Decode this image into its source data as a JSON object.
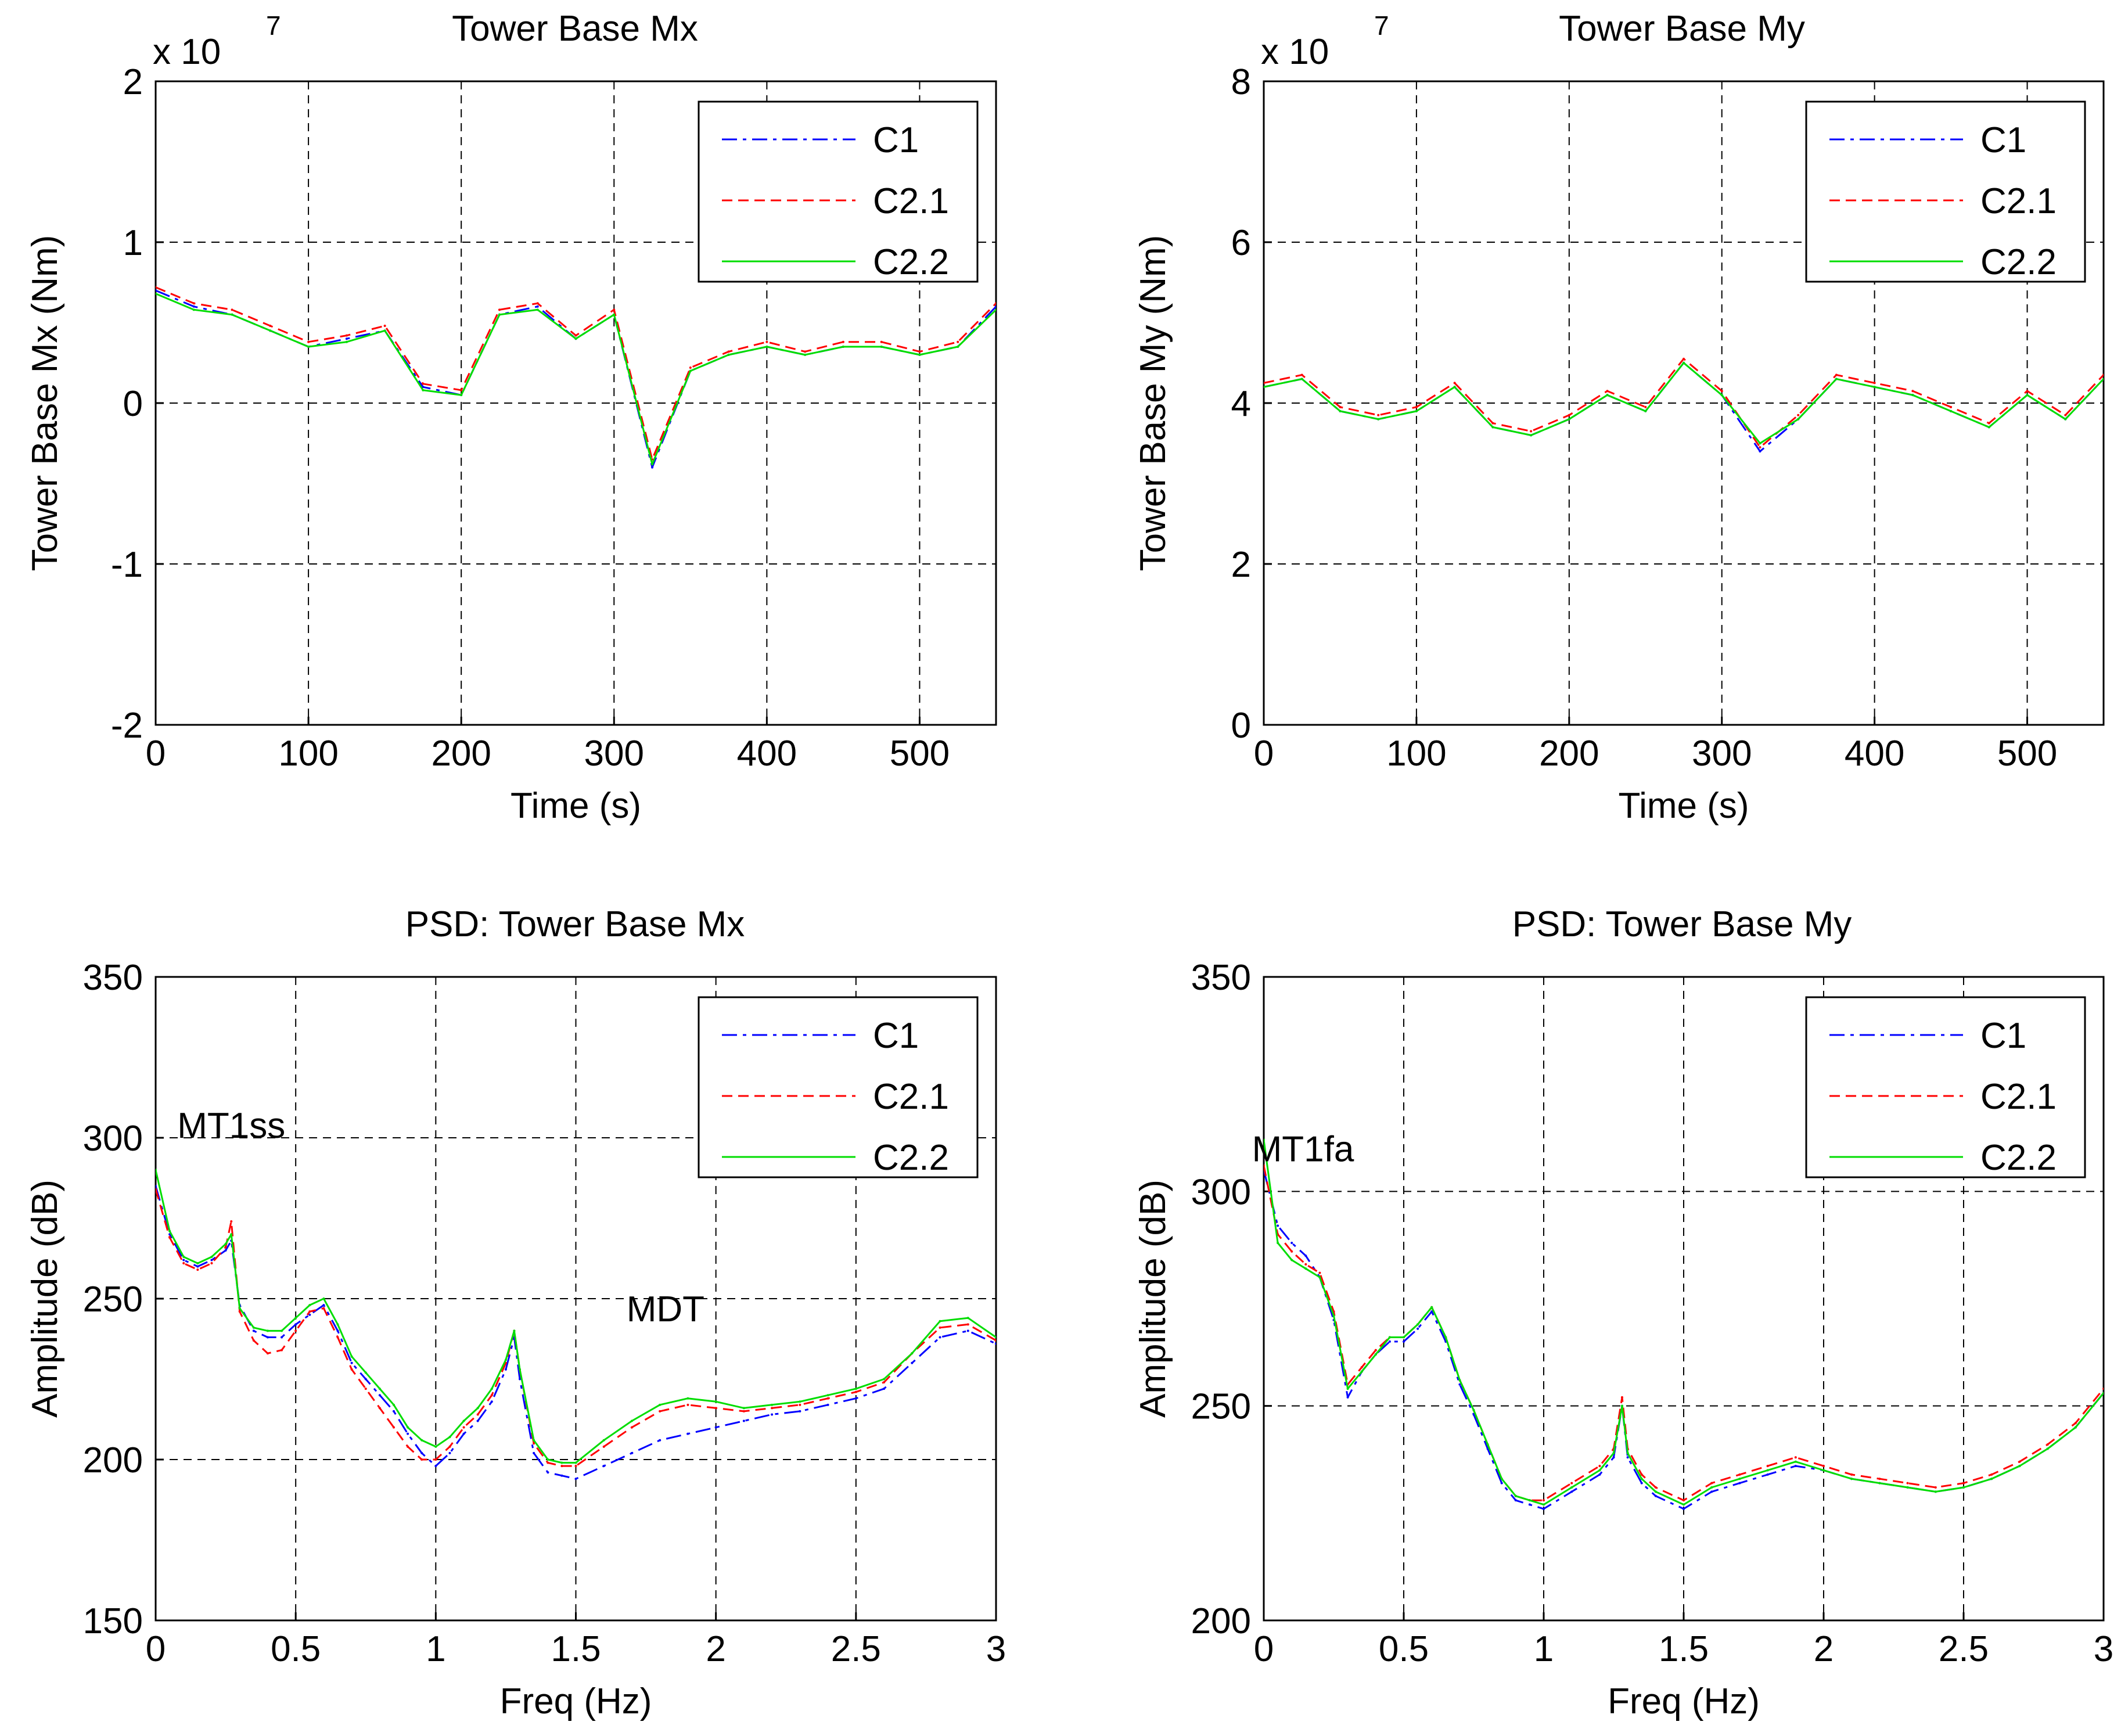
{
  "figure": {
    "panels": [
      {
        "title": "Tower Base Mx"
      },
      {
        "title": "Tower Base My"
      },
      {
        "title": "PSD: Tower Base Mx"
      },
      {
        "title": "PSD: Tower Base My"
      }
    ]
  },
  "chart_data": [
    {
      "type": "line",
      "title": "Tower Base Mx",
      "xlabel": "Time (s)",
      "ylabel": "Tower Base Mx (Nm)",
      "exponent_label": "x 10",
      "exponent_power": "7",
      "xlim": [
        0,
        550
      ],
      "ylim": [
        -2,
        2
      ],
      "xticks": [
        0,
        100,
        200,
        300,
        400,
        500
      ],
      "yticks": [
        -2,
        -1,
        0,
        1,
        2
      ],
      "grid": true,
      "legend_position": "top-right",
      "series": [
        {
          "name": "C1",
          "color": "#0000ff",
          "style": "dashdot",
          "x": [
            0,
            25,
            50,
            75,
            100,
            125,
            150,
            175,
            200,
            225,
            250,
            275,
            300,
            325,
            350,
            375,
            400,
            425,
            450,
            475,
            500,
            525,
            550
          ],
          "y": [
            0.7,
            0.6,
            0.55,
            0.45,
            0.35,
            0.4,
            0.45,
            0.1,
            0.05,
            0.55,
            0.6,
            0.4,
            0.55,
            -0.4,
            0.2,
            0.3,
            0.35,
            0.3,
            0.35,
            0.35,
            0.3,
            0.35,
            0.6
          ]
        },
        {
          "name": "C2.1",
          "color": "#ff0000",
          "style": "dashed",
          "x": [
            0,
            25,
            50,
            75,
            100,
            125,
            150,
            175,
            200,
            225,
            250,
            275,
            300,
            325,
            350,
            375,
            400,
            425,
            450,
            475,
            500,
            525,
            550
          ],
          "y": [
            0.72,
            0.62,
            0.58,
            0.48,
            0.38,
            0.42,
            0.48,
            0.12,
            0.08,
            0.58,
            0.62,
            0.42,
            0.58,
            -0.35,
            0.22,
            0.32,
            0.38,
            0.32,
            0.38,
            0.38,
            0.32,
            0.38,
            0.62
          ]
        },
        {
          "name": "C2.2",
          "color": "#00dd00",
          "style": "solid",
          "x": [
            0,
            25,
            50,
            75,
            100,
            125,
            150,
            175,
            200,
            225,
            250,
            275,
            300,
            325,
            350,
            375,
            400,
            425,
            450,
            475,
            500,
            525,
            550
          ],
          "y": [
            0.68,
            0.58,
            0.55,
            0.45,
            0.35,
            0.38,
            0.45,
            0.08,
            0.05,
            0.55,
            0.58,
            0.4,
            0.55,
            -0.38,
            0.2,
            0.3,
            0.35,
            0.3,
            0.35,
            0.35,
            0.3,
            0.35,
            0.58
          ]
        }
      ]
    },
    {
      "type": "line",
      "title": "Tower Base My",
      "xlabel": "Time (s)",
      "ylabel": "Tower Base My (Nm)",
      "exponent_label": "x 10",
      "exponent_power": "7",
      "xlim": [
        0,
        550
      ],
      "ylim": [
        0,
        8
      ],
      "xticks": [
        0,
        100,
        200,
        300,
        400,
        500
      ],
      "yticks": [
        0,
        2,
        4,
        6,
        8
      ],
      "grid": true,
      "legend_position": "top-right",
      "series": [
        {
          "name": "C1",
          "color": "#0000ff",
          "style": "dashdot",
          "x": [
            0,
            25,
            50,
            75,
            100,
            125,
            150,
            175,
            200,
            225,
            250,
            275,
            300,
            325,
            350,
            375,
            400,
            425,
            450,
            475,
            500,
            525,
            550
          ],
          "y": [
            4.2,
            4.3,
            3.9,
            3.8,
            3.9,
            4.2,
            3.7,
            3.6,
            3.8,
            4.1,
            3.9,
            4.5,
            4.1,
            3.4,
            3.8,
            4.3,
            4.2,
            4.1,
            3.9,
            3.7,
            4.1,
            3.8,
            4.3
          ]
        },
        {
          "name": "C2.1",
          "color": "#ff0000",
          "style": "dashed",
          "x": [
            0,
            25,
            50,
            75,
            100,
            125,
            150,
            175,
            200,
            225,
            250,
            275,
            300,
            325,
            350,
            375,
            400,
            425,
            450,
            475,
            500,
            525,
            550
          ],
          "y": [
            4.25,
            4.35,
            3.95,
            3.85,
            3.95,
            4.25,
            3.75,
            3.65,
            3.85,
            4.15,
            3.95,
            4.55,
            4.15,
            3.45,
            3.85,
            4.35,
            4.25,
            4.15,
            3.95,
            3.75,
            4.15,
            3.85,
            4.35
          ]
        },
        {
          "name": "C2.2",
          "color": "#00dd00",
          "style": "solid",
          "x": [
            0,
            25,
            50,
            75,
            100,
            125,
            150,
            175,
            200,
            225,
            250,
            275,
            300,
            325,
            350,
            375,
            400,
            425,
            450,
            475,
            500,
            525,
            550
          ],
          "y": [
            4.2,
            4.3,
            3.9,
            3.8,
            3.9,
            4.2,
            3.7,
            3.6,
            3.8,
            4.1,
            3.9,
            4.5,
            4.1,
            3.5,
            3.8,
            4.3,
            4.2,
            4.1,
            3.9,
            3.7,
            4.1,
            3.8,
            4.3
          ]
        }
      ]
    },
    {
      "type": "line",
      "title": "PSD: Tower Base Mx",
      "xlabel": "Freq (Hz)",
      "ylabel": "Amplitude (dB)",
      "xlim": [
        0,
        3
      ],
      "ylim": [
        150,
        350
      ],
      "xticks": [
        0,
        0.5,
        1,
        1.5,
        2,
        2.5,
        3
      ],
      "xtick_labels": [
        "0",
        "0.5",
        "1",
        "1.5",
        "2",
        "2.5",
        "3"
      ],
      "yticks": [
        150,
        200,
        250,
        300,
        350
      ],
      "grid": true,
      "legend_position": "top-right",
      "annotations": [
        {
          "text": "MT1ss",
          "x": 0.27,
          "y": 300
        },
        {
          "text": "MDT",
          "x": 1.82,
          "y": 243
        }
      ],
      "series": [
        {
          "name": "C1",
          "color": "#0000ff",
          "style": "dashdot",
          "x": [
            0,
            0.05,
            0.1,
            0.15,
            0.2,
            0.25,
            0.27,
            0.3,
            0.35,
            0.4,
            0.45,
            0.5,
            0.55,
            0.6,
            0.65,
            0.7,
            0.75,
            0.8,
            0.85,
            0.9,
            0.95,
            1.0,
            1.05,
            1.1,
            1.15,
            1.2,
            1.25,
            1.28,
            1.3,
            1.35,
            1.4,
            1.45,
            1.5,
            1.6,
            1.7,
            1.8,
            1.9,
            2.0,
            2.1,
            2.2,
            2.3,
            2.4,
            2.5,
            2.6,
            2.7,
            2.8,
            2.9,
            3.0
          ],
          "y": [
            285,
            270,
            262,
            260,
            262,
            265,
            268,
            248,
            240,
            238,
            238,
            242,
            245,
            248,
            240,
            230,
            225,
            220,
            215,
            208,
            202,
            198,
            202,
            208,
            212,
            218,
            228,
            238,
            225,
            202,
            196,
            195,
            194,
            198,
            202,
            206,
            208,
            210,
            212,
            214,
            215,
            217,
            219,
            222,
            230,
            238,
            240,
            236
          ]
        },
        {
          "name": "C2.1",
          "color": "#ff0000",
          "style": "dashed",
          "x": [
            0,
            0.05,
            0.1,
            0.15,
            0.2,
            0.25,
            0.27,
            0.3,
            0.35,
            0.4,
            0.45,
            0.5,
            0.55,
            0.6,
            0.65,
            0.7,
            0.75,
            0.8,
            0.85,
            0.9,
            0.95,
            1.0,
            1.05,
            1.1,
            1.15,
            1.2,
            1.25,
            1.28,
            1.3,
            1.35,
            1.4,
            1.45,
            1.5,
            1.6,
            1.7,
            1.8,
            1.9,
            2.0,
            2.1,
            2.2,
            2.3,
            2.4,
            2.5,
            2.6,
            2.7,
            2.8,
            2.9,
            3.0
          ],
          "y": [
            284,
            269,
            261,
            259,
            261,
            266,
            274,
            246,
            237,
            233,
            234,
            240,
            246,
            247,
            238,
            228,
            222,
            216,
            210,
            204,
            200,
            200,
            204,
            210,
            214,
            220,
            230,
            240,
            228,
            205,
            199,
            198,
            198,
            204,
            210,
            215,
            217,
            216,
            215,
            216,
            217,
            219,
            221,
            224,
            233,
            241,
            242,
            237
          ]
        },
        {
          "name": "C2.2",
          "color": "#00dd00",
          "style": "solid",
          "x": [
            0,
            0.05,
            0.1,
            0.15,
            0.2,
            0.25,
            0.27,
            0.3,
            0.35,
            0.4,
            0.45,
            0.5,
            0.55,
            0.6,
            0.65,
            0.7,
            0.75,
            0.8,
            0.85,
            0.9,
            0.95,
            1.0,
            1.05,
            1.1,
            1.15,
            1.2,
            1.25,
            1.28,
            1.3,
            1.35,
            1.4,
            1.45,
            1.5,
            1.6,
            1.7,
            1.8,
            1.9,
            2.0,
            2.1,
            2.2,
            2.3,
            2.4,
            2.5,
            2.6,
            2.7,
            2.8,
            2.9,
            3.0
          ],
          "y": [
            290,
            271,
            263,
            261,
            263,
            267,
            270,
            247,
            241,
            240,
            240,
            244,
            248,
            250,
            242,
            232,
            227,
            222,
            217,
            210,
            206,
            204,
            207,
            212,
            216,
            222,
            231,
            240,
            228,
            206,
            200,
            199,
            199,
            206,
            212,
            217,
            219,
            218,
            216,
            217,
            218,
            220,
            222,
            225,
            233,
            243,
            244,
            238
          ]
        }
      ]
    },
    {
      "type": "line",
      "title": "PSD: Tower Base My",
      "xlabel": "Freq (Hz)",
      "ylabel": "Amplitude (dB)",
      "xlim": [
        0,
        3
      ],
      "ylim": [
        200,
        350
      ],
      "xticks": [
        0,
        0.5,
        1,
        1.5,
        2,
        2.5,
        3
      ],
      "xtick_labels": [
        "0",
        "0.5",
        "1",
        "1.5",
        "2",
        "2.5",
        "3"
      ],
      "yticks": [
        200,
        250,
        300,
        350
      ],
      "grid": true,
      "legend_position": "top-right",
      "annotations": [
        {
          "text": "MT1fa",
          "x": 0.14,
          "y": 307
        }
      ],
      "series": [
        {
          "name": "C1",
          "color": "#0000ff",
          "style": "dashdot",
          "x": [
            0,
            0.05,
            0.1,
            0.15,
            0.2,
            0.25,
            0.3,
            0.35,
            0.4,
            0.45,
            0.5,
            0.55,
            0.6,
            0.65,
            0.7,
            0.75,
            0.8,
            0.85,
            0.9,
            0.95,
            1.0,
            1.1,
            1.2,
            1.25,
            1.28,
            1.3,
            1.35,
            1.4,
            1.5,
            1.6,
            1.7,
            1.8,
            1.9,
            2.0,
            2.1,
            2.2,
            2.3,
            2.4,
            2.5,
            2.6,
            2.7,
            2.8,
            2.9,
            3.0
          ],
          "y": [
            305,
            292,
            288,
            285,
            280,
            270,
            252,
            258,
            262,
            265,
            265,
            268,
            272,
            265,
            255,
            248,
            240,
            232,
            228,
            227,
            226,
            230,
            234,
            238,
            250,
            238,
            232,
            229,
            226,
            230,
            232,
            234,
            236,
            235,
            233,
            232,
            231,
            230,
            231,
            233,
            236,
            240,
            245,
            253
          ]
        },
        {
          "name": "C2.1",
          "color": "#ff0000",
          "style": "dashed",
          "x": [
            0,
            0.05,
            0.1,
            0.15,
            0.2,
            0.25,
            0.3,
            0.35,
            0.4,
            0.45,
            0.5,
            0.55,
            0.6,
            0.65,
            0.7,
            0.75,
            0.8,
            0.85,
            0.9,
            0.95,
            1.0,
            1.1,
            1.2,
            1.25,
            1.28,
            1.3,
            1.35,
            1.4,
            1.5,
            1.6,
            1.7,
            1.8,
            1.9,
            2.0,
            2.1,
            2.2,
            2.3,
            2.4,
            2.5,
            2.6,
            2.7,
            2.8,
            2.9,
            3.0
          ],
          "y": [
            306,
            290,
            286,
            283,
            281,
            272,
            255,
            259,
            263,
            266,
            266,
            269,
            273,
            266,
            256,
            249,
            241,
            233,
            229,
            228,
            228,
            232,
            236,
            240,
            252,
            240,
            234,
            231,
            228,
            232,
            234,
            236,
            238,
            236,
            234,
            233,
            232,
            231,
            232,
            234,
            237,
            241,
            246,
            254
          ]
        },
        {
          "name": "C2.2",
          "color": "#00dd00",
          "style": "solid",
          "x": [
            0,
            0.05,
            0.1,
            0.15,
            0.2,
            0.25,
            0.3,
            0.35,
            0.4,
            0.45,
            0.5,
            0.55,
            0.6,
            0.65,
            0.7,
            0.75,
            0.8,
            0.85,
            0.9,
            0.95,
            1.0,
            1.1,
            1.2,
            1.25,
            1.28,
            1.3,
            1.35,
            1.4,
            1.5,
            1.6,
            1.7,
            1.8,
            1.9,
            2.0,
            2.1,
            2.2,
            2.3,
            2.4,
            2.5,
            2.6,
            2.7,
            2.8,
            2.9,
            3.0
          ],
          "y": [
            312,
            288,
            284,
            282,
            280,
            271,
            254,
            258,
            262,
            266,
            266,
            269,
            273,
            266,
            256,
            249,
            241,
            233,
            229,
            228,
            227,
            231,
            235,
            239,
            250,
            239,
            233,
            230,
            227,
            231,
            233,
            235,
            237,
            235,
            233,
            232,
            231,
            230,
            231,
            233,
            236,
            240,
            245,
            253
          ]
        }
      ]
    }
  ]
}
